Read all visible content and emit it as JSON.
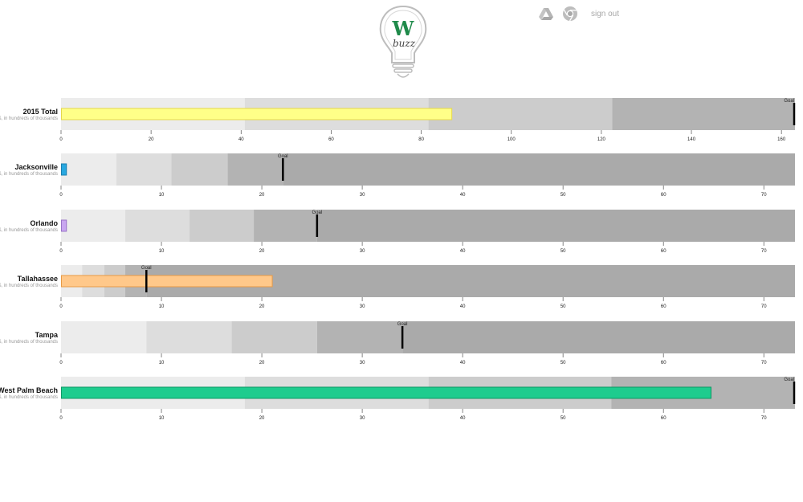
{
  "header": {
    "logo_letter": "W",
    "logo_word": "buzz",
    "logo_icon": "lightbulb-icon",
    "nav": {
      "drive_icon": "google-drive-icon",
      "chrome_icon": "chrome-icon",
      "signout_label": "sign out"
    }
  },
  "colors": {
    "range": [
      "#ececec",
      "#dddddd",
      "#cccccc",
      "#b3b3b3",
      "#aaaaaa"
    ],
    "logo_green": "#1f8a4a",
    "icon_gray": "#b5b5b5"
  },
  "chart_data": {
    "type": "bullet",
    "goal_label": "Goal",
    "rows": [
      {
        "title": "2015 Total",
        "subtitle": "$, in hundreds of thousands",
        "value": 86.7,
        "goal": 163,
        "max": 163,
        "ranges": [
          40.8,
          81.6,
          122.4,
          163
        ],
        "ticks": [
          0,
          20,
          40,
          60,
          80,
          100,
          120,
          140,
          160
        ],
        "bar_color": "#ffff88",
        "bar_border": "#e6d84a"
      },
      {
        "title": "Jacksonville",
        "subtitle": "$, in hundreds of thousands",
        "value": 0.5,
        "goal": 22.1,
        "max": 73.1,
        "ranges": [
          5.5,
          11,
          16.6,
          22.1,
          73.1
        ],
        "ticks": [
          0,
          10,
          20,
          30,
          40,
          50,
          60,
          70
        ],
        "bar_color": "#29a8e0",
        "bar_border": "#1a7fb0"
      },
      {
        "title": "Orlando",
        "subtitle": "$, in hundreds of thousands",
        "value": 0.5,
        "goal": 25.5,
        "max": 73.1,
        "ranges": [
          6.4,
          12.8,
          19.2,
          25.5,
          73.1
        ],
        "ticks": [
          0,
          10,
          20,
          30,
          40,
          50,
          60,
          70
        ],
        "bar_color": "#c9a6f0",
        "bar_border": "#9a74c8"
      },
      {
        "title": "Tallahassee",
        "subtitle": "$, in hundreds of thousands",
        "value": 21,
        "goal": 8.5,
        "max": 73.1,
        "ranges": [
          2.1,
          4.3,
          6.4,
          8.5,
          73.1
        ],
        "ticks": [
          0,
          10,
          20,
          30,
          40,
          50,
          60,
          70
        ],
        "bar_color": "#ffc88a",
        "bar_border": "#e89a45"
      },
      {
        "title": "Tampa",
        "subtitle": "$, in hundreds of thousands",
        "value": 0,
        "goal": 34,
        "max": 73.1,
        "ranges": [
          8.5,
          17,
          25.5,
          34,
          73.1
        ],
        "ticks": [
          0,
          10,
          20,
          30,
          40,
          50,
          60,
          70
        ],
        "bar_color": "#888888",
        "bar_border": "#666666"
      },
      {
        "title": "West Palm Beach",
        "subtitle": "$, in hundreds of thousands",
        "value": 64.7,
        "goal": 73.1,
        "max": 73.1,
        "ranges": [
          18.3,
          36.6,
          54.8,
          73.1
        ],
        "ticks": [
          0,
          10,
          20,
          30,
          40,
          50,
          60,
          70
        ],
        "bar_color": "#1ecc8e",
        "bar_border": "#0f9966"
      }
    ]
  }
}
